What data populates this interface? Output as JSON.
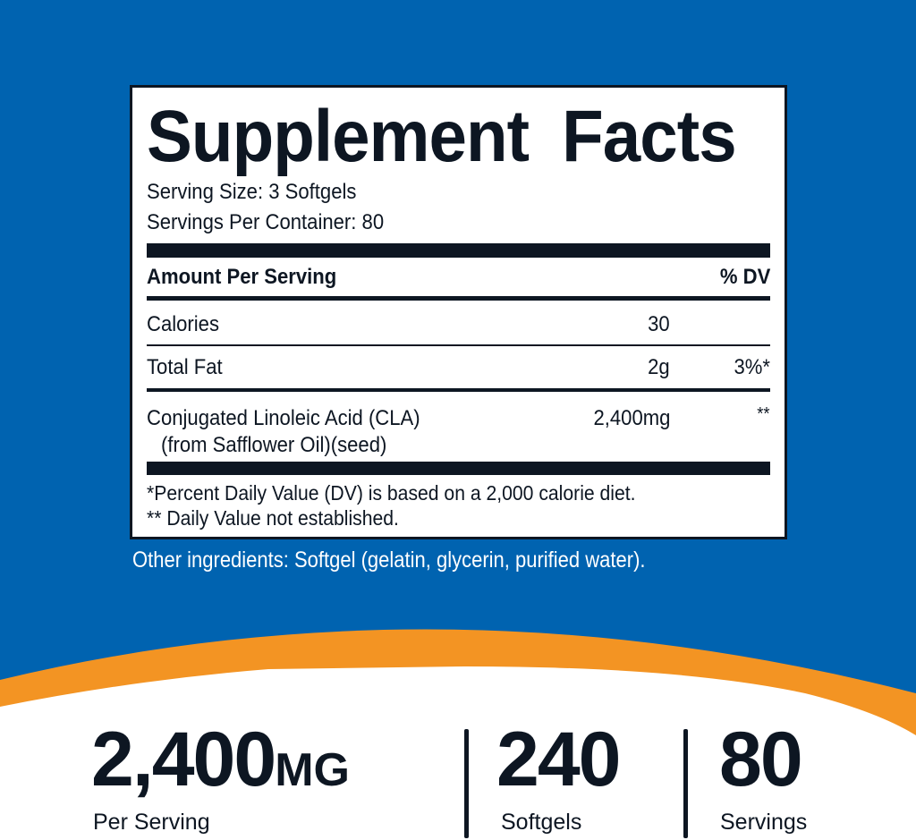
{
  "colors": {
    "background": "#0063b0",
    "accent": "#f39423",
    "text": "#0d1622"
  },
  "facts": {
    "title": "Supplement Facts",
    "serving_size": "Serving Size: 3 Softgels",
    "servings_per_container": "Servings Per Container: 80",
    "header_amount": "Amount Per Serving",
    "header_dv": "% DV",
    "rows": [
      {
        "name": "Calories",
        "amount": "30",
        "dv": ""
      },
      {
        "name": "Total Fat",
        "amount": "2g",
        "dv": "3%*"
      },
      {
        "name": "Conjugated Linoleic Acid (CLA)",
        "sub": "(from Safflower Oil)(seed)",
        "amount": "2,400mg",
        "dv": "**"
      }
    ],
    "footnote1": "*Percent Daily Value (DV) is based on a 2,000 calorie diet.",
    "footnote2": "** Daily Value not established."
  },
  "other_ingredients": "Other ingredients: Softgel (gelatin, glycerin, purified water).",
  "stats": [
    {
      "value": "2,400",
      "unit": "MG",
      "label": "Per Serving"
    },
    {
      "value": "240",
      "label": "Softgels"
    },
    {
      "value": "80",
      "label": "Servings"
    }
  ]
}
